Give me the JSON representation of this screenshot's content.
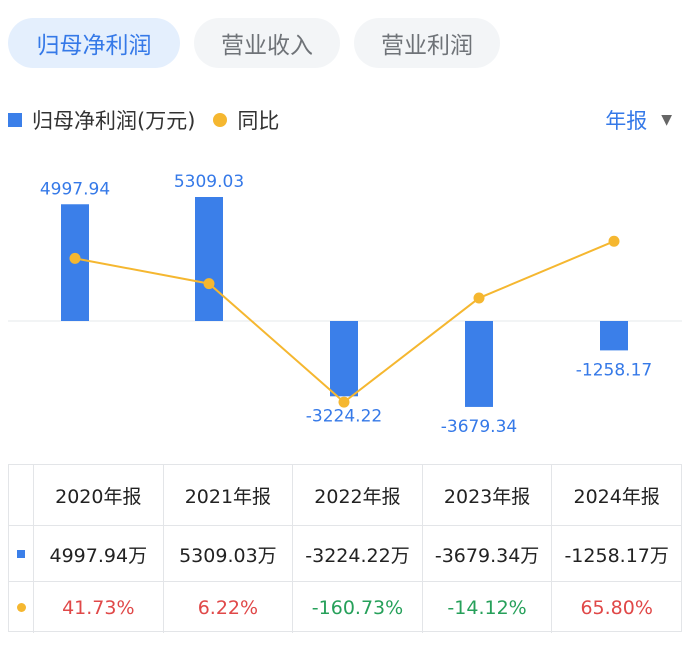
{
  "tabs": [
    {
      "label": "归母净利润",
      "active": true
    },
    {
      "label": "营业收入",
      "active": false
    },
    {
      "label": "营业利润",
      "active": false
    }
  ],
  "legend": {
    "bar_label": "归母净利润(万元)",
    "line_label": "同比"
  },
  "period_selector": {
    "label": "年报",
    "caret": "▼"
  },
  "colors": {
    "bar": "#3b7fe9",
    "line": "#f5b730",
    "positive": "#e04848",
    "negative": "#26a05a",
    "accent": "#3579e8"
  },
  "chart_data": {
    "type": "bar",
    "categories": [
      "2020年报",
      "2021年报",
      "2022年报",
      "2023年报",
      "2024年报"
    ],
    "series": [
      {
        "name": "归母净利润(万元)",
        "type": "bar",
        "values": [
          4997.94,
          5309.03,
          -3224.22,
          -3679.34,
          -1258.17
        ],
        "labels": [
          "4997.94",
          "5309.03",
          "-3224.22",
          "-3679.34",
          "-1258.17"
        ]
      },
      {
        "name": "同比",
        "type": "line",
        "values": [
          41.73,
          6.22,
          -160.73,
          -14.12,
          65.8
        ]
      }
    ]
  },
  "table": {
    "header": [
      "2020年报",
      "2021年报",
      "2022年报",
      "2023年报",
      "2024年报"
    ],
    "profit_row": [
      "4997.94万",
      "5309.03万",
      "-3224.22万",
      "-3679.34万",
      "-1258.17万"
    ],
    "yoy_row": [
      "41.73%",
      "6.22%",
      "-160.73%",
      "-14.12%",
      "65.80%"
    ]
  }
}
